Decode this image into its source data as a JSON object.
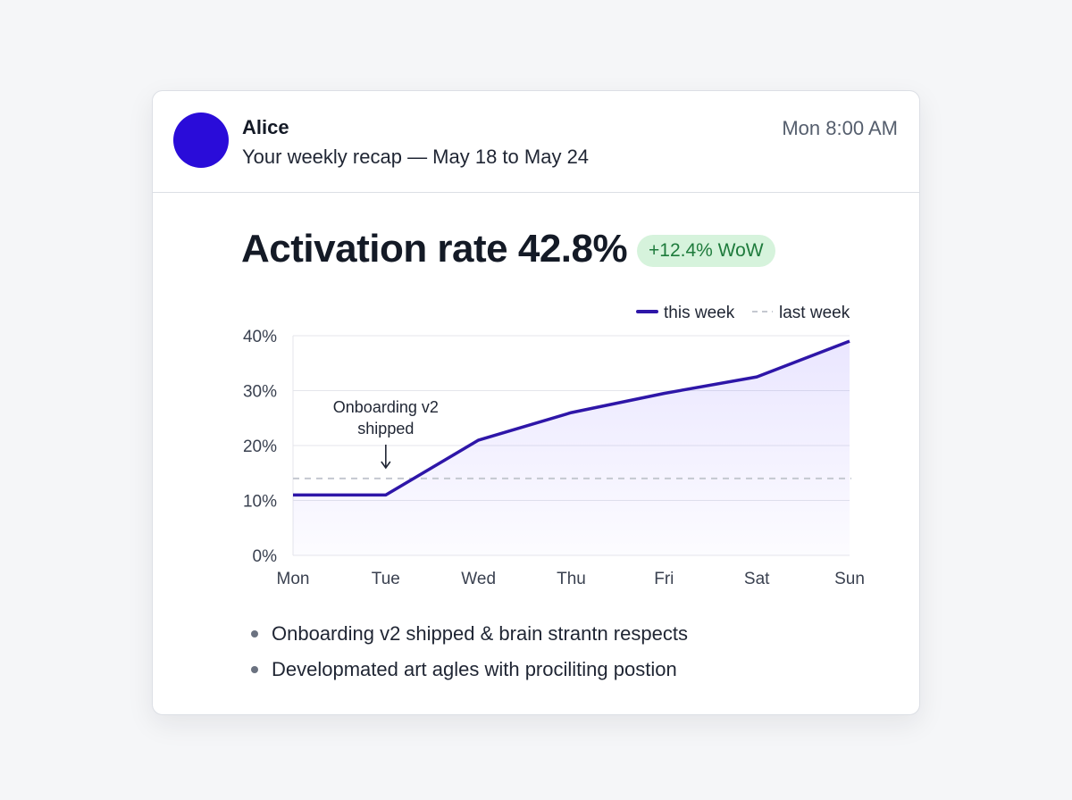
{
  "email": {
    "sender": "Alice",
    "subject": "Your weekly recap — May 18 to May 24",
    "time": "Mon 8:00 AM"
  },
  "metric": {
    "headline": "Activation rate 42.8%",
    "badge": "+12.4% WoW"
  },
  "colors": {
    "accent": "#2a0cd9",
    "this_week_line": "#2e16a8",
    "last_week_line": "#c4c8d0",
    "badge_bg": "#d6f3dc",
    "badge_text": "#1e7b3c"
  },
  "chart_data": {
    "type": "line",
    "title": "",
    "xlabel": "",
    "ylabel": "",
    "categories": [
      "Mon",
      "Tue",
      "Wed",
      "Thu",
      "Fri",
      "Sat",
      "Sun"
    ],
    "y_ticks": [
      "0%",
      "10%",
      "20%",
      "30%",
      "40%"
    ],
    "ylim": [
      0,
      40
    ],
    "grid": true,
    "legend": "top-right",
    "series": [
      {
        "name": "this week",
        "style": "solid",
        "values": [
          11,
          11,
          21,
          26,
          29.5,
          32.5,
          39
        ]
      },
      {
        "name": "last week",
        "style": "dashed",
        "values": [
          14,
          14,
          14,
          14,
          14,
          14,
          14
        ]
      }
    ],
    "annotation": {
      "text_lines": [
        "Onboarding v2",
        "shipped"
      ],
      "category": "Tue"
    }
  },
  "bullets": [
    "Onboarding v2 shipped & brain strantn respects",
    "Developmated art agles with prociliting postion"
  ]
}
